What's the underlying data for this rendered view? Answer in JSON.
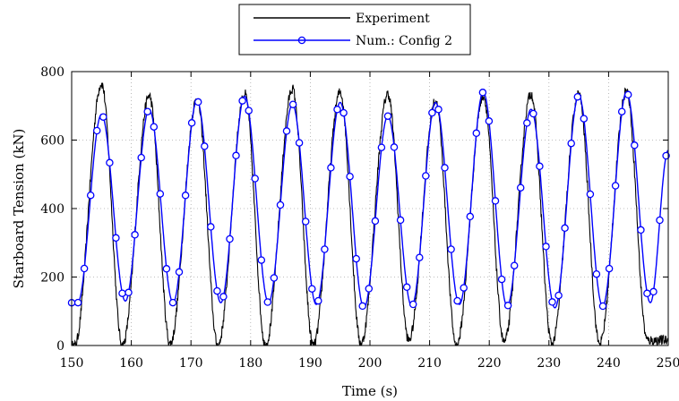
{
  "chart_data": {
    "type": "line",
    "title": "",
    "xlabel": "Time (s)",
    "ylabel": "Starboard Tension (kN)",
    "xlim": [
      150,
      250
    ],
    "ylim": [
      0,
      800
    ],
    "xticks": [
      150,
      160,
      170,
      180,
      190,
      200,
      210,
      220,
      230,
      240,
      250
    ],
    "yticks": [
      0,
      200,
      400,
      600,
      800
    ],
    "grid": true,
    "legend_position": "top-center",
    "series": [
      {
        "name": "Experiment",
        "color": "#000000",
        "marker": "none",
        "peaks": [
          [
            155.0,
            765
          ],
          [
            163.0,
            730
          ],
          [
            171.0,
            720
          ],
          [
            179.0,
            735
          ],
          [
            187.0,
            750
          ],
          [
            195.0,
            740
          ],
          [
            203.0,
            735
          ],
          [
            211.0,
            715
          ],
          [
            219.0,
            730
          ],
          [
            227.0,
            735
          ],
          [
            235.0,
            735
          ],
          [
            243.0,
            745
          ]
        ],
        "troughs": [
          [
            150.5,
            0
          ],
          [
            158.5,
            0
          ],
          [
            166.5,
            5
          ],
          [
            174.5,
            0
          ],
          [
            182.5,
            0
          ],
          [
            190.5,
            0
          ],
          [
            198.5,
            5
          ],
          [
            206.5,
            15
          ],
          [
            214.5,
            0
          ],
          [
            222.5,
            10
          ],
          [
            230.5,
            5
          ],
          [
            238.5,
            5
          ],
          [
            246.5,
            15
          ]
        ]
      },
      {
        "name": "Num.: Config 2",
        "color": "#0000ff",
        "marker": "circle",
        "peaks": [
          [
            155.0,
            675
          ],
          [
            163.0,
            690
          ],
          [
            171.0,
            715
          ],
          [
            179.0,
            728
          ],
          [
            187.0,
            705
          ],
          [
            195.0,
            710
          ],
          [
            203.0,
            670
          ],
          [
            211.0,
            710
          ],
          [
            219.0,
            740
          ],
          [
            227.0,
            690
          ],
          [
            235.0,
            730
          ],
          [
            243.0,
            740
          ]
        ],
        "troughs": [
          [
            151.0,
            125
          ],
          [
            159.0,
            130
          ],
          [
            167.0,
            125
          ],
          [
            175.0,
            125
          ],
          [
            183.0,
            125
          ],
          [
            191.0,
            120
          ],
          [
            199.0,
            110
          ],
          [
            207.0,
            115
          ],
          [
            215.0,
            120
          ],
          [
            223.0,
            115
          ],
          [
            231.0,
            110
          ],
          [
            239.0,
            115
          ],
          [
            247.0,
            125
          ]
        ],
        "end": [
          250,
          570
        ],
        "marker_spacing": 1.06
      }
    ]
  }
}
